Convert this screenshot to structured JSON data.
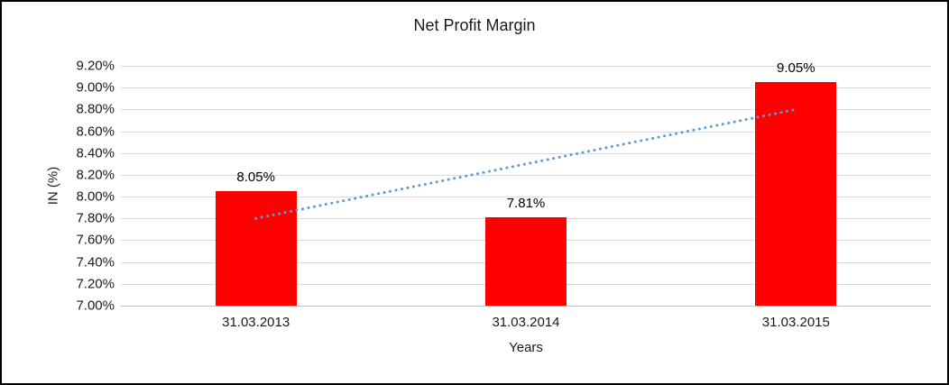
{
  "chart_data": {
    "type": "bar",
    "title": "Net Profit Margin",
    "xlabel": "Years",
    "ylabel": "IN (%)",
    "categories": [
      "31.03.2013",
      "31.03.2014",
      "31.03.2015"
    ],
    "values": [
      8.05,
      7.81,
      9.05
    ],
    "data_labels": [
      "8.05%",
      "7.81%",
      "9.05%"
    ],
    "ylim": [
      7.0,
      9.2
    ],
    "ytick_step": 0.2,
    "ytick_labels": [
      "7.00%",
      "7.20%",
      "7.40%",
      "7.60%",
      "7.80%",
      "8.00%",
      "8.20%",
      "8.40%",
      "8.60%",
      "8.80%",
      "9.00%",
      "9.20%"
    ],
    "bar_color": "#ff0000",
    "grid": true,
    "legend": "none",
    "trendline": {
      "type": "linear",
      "style": "dotted",
      "color": "#5b9bd5",
      "start_category_index": 0,
      "end_category_index": 2,
      "start_value": 7.8,
      "end_value": 8.8
    }
  }
}
